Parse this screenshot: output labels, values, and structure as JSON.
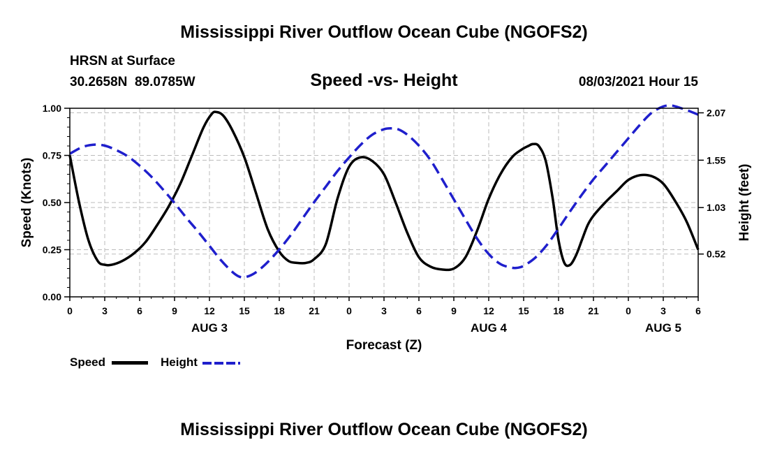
{
  "header": {
    "title": "Mississippi River Outflow Ocean Cube (NGOFS2)",
    "station": "HRSN at Surface",
    "coords": "30.2658N  89.0785W",
    "subtitle": "Speed -vs- Height",
    "datetime": "08/03/2021 Hour 15"
  },
  "footer": {
    "title": "Mississippi River Outflow Ocean Cube (NGOFS2)"
  },
  "legend": {
    "speed_label": "Speed",
    "height_label": "Height"
  },
  "colors": {
    "speed": "#000000",
    "height": "#1f1fcc",
    "grid": "#bbbbbb"
  },
  "chart_data": {
    "type": "line",
    "xlabel": "Forecast (Z)",
    "ylabel_left": "Speed (Knots)",
    "ylabel_right": "Height (feet)",
    "x_unit": "hours since 08/03 00Z",
    "xlim": [
      0,
      54
    ],
    "x_ticks": [
      0,
      3,
      6,
      9,
      12,
      15,
      18,
      21,
      24,
      27,
      30,
      33,
      36,
      39,
      42,
      45,
      48,
      51,
      54
    ],
    "x_tick_labels": [
      "0",
      "3",
      "6",
      "9",
      "12",
      "15",
      "18",
      "21",
      "0",
      "3",
      "6",
      "9",
      "12",
      "15",
      "18",
      "21",
      "0",
      "3",
      "6"
    ],
    "day_labels": [
      {
        "x": 12,
        "label": "AUG 3"
      },
      {
        "x": 36,
        "label": "AUG 4"
      },
      {
        "x": 51,
        "label": "AUG 5"
      }
    ],
    "ylim_left": [
      0,
      1.0
    ],
    "y_ticks_left": [
      0,
      0.25,
      0.5,
      0.75,
      1.0
    ],
    "y_tick_labels_left": [
      "0.00",
      "0.25",
      "0.50",
      "0.75",
      "1.00"
    ],
    "ylim_right": [
      0.05,
      2.12
    ],
    "y_ticks_right": [
      0.52,
      1.03,
      1.55,
      2.07
    ],
    "y_tick_labels_right": [
      "0.52",
      "1.03",
      "1.55",
      "2.07"
    ],
    "series": [
      {
        "name": "Speed",
        "axis": "left",
        "style": "solid",
        "x": [
          0,
          0.8,
          1.6,
          2.4,
          3.0,
          3.6,
          4.5,
          5.5,
          6.5,
          7.5,
          8.5,
          9.5,
          10.5,
          11.5,
          12.2,
          12.6,
          13.2,
          14.0,
          15.0,
          16.0,
          17.0,
          18.0,
          18.8,
          19.5,
          20.3,
          21.0,
          22.0,
          23.0,
          24.0,
          25.0,
          26.0,
          27.0,
          28.0,
          29.0,
          30.0,
          31.0,
          32.0,
          33.0,
          34.0,
          35.0,
          36.0,
          37.0,
          38.0,
          38.8,
          39.4,
          39.8,
          40.3,
          40.9,
          41.5,
          42.0,
          42.5,
          43.0,
          43.5,
          44.0,
          44.5,
          45.0,
          46.0,
          47.0,
          48.0,
          49.0,
          50.0,
          51.0,
          52.0,
          53.0,
          54.0
        ],
        "values": [
          0.75,
          0.5,
          0.3,
          0.19,
          0.17,
          0.17,
          0.19,
          0.23,
          0.29,
          0.38,
          0.48,
          0.6,
          0.75,
          0.9,
          0.97,
          0.98,
          0.96,
          0.88,
          0.74,
          0.55,
          0.36,
          0.24,
          0.19,
          0.18,
          0.18,
          0.2,
          0.28,
          0.52,
          0.69,
          0.74,
          0.72,
          0.65,
          0.5,
          0.34,
          0.21,
          0.16,
          0.145,
          0.15,
          0.21,
          0.35,
          0.52,
          0.65,
          0.74,
          0.78,
          0.8,
          0.81,
          0.8,
          0.72,
          0.52,
          0.3,
          0.18,
          0.17,
          0.22,
          0.3,
          0.38,
          0.43,
          0.5,
          0.56,
          0.62,
          0.645,
          0.64,
          0.6,
          0.51,
          0.4,
          0.25
        ]
      },
      {
        "name": "Height",
        "axis": "right",
        "style": "dashed",
        "x": [
          0,
          1.0,
          2.0,
          3.0,
          4.0,
          5.0,
          6.0,
          7.0,
          8.0,
          9.0,
          10.0,
          11.0,
          12.0,
          13.0,
          14.0,
          14.6,
          15.2,
          16.0,
          17.0,
          18.0,
          19.0,
          20.0,
          21.0,
          22.0,
          23.0,
          24.0,
          25.0,
          26.0,
          27.0,
          27.6,
          28.2,
          29.0,
          30.0,
          31.0,
          32.0,
          33.0,
          34.0,
          35.0,
          36.0,
          37.0,
          38.0,
          38.5,
          39.0,
          40.0,
          41.0,
          42.0,
          43.0,
          44.0,
          45.0,
          46.0,
          47.0,
          48.0,
          49.0,
          50.0,
          51.0,
          51.7,
          52.3,
          53.0,
          54.0
        ],
        "values": [
          1.62,
          1.69,
          1.72,
          1.71,
          1.66,
          1.59,
          1.49,
          1.37,
          1.23,
          1.08,
          0.92,
          0.77,
          0.61,
          0.45,
          0.32,
          0.27,
          0.27,
          0.32,
          0.43,
          0.57,
          0.73,
          0.91,
          1.09,
          1.26,
          1.43,
          1.58,
          1.72,
          1.83,
          1.89,
          1.9,
          1.89,
          1.83,
          1.71,
          1.55,
          1.34,
          1.12,
          0.9,
          0.69,
          0.52,
          0.41,
          0.37,
          0.37,
          0.39,
          0.48,
          0.62,
          0.8,
          0.99,
          1.17,
          1.34,
          1.49,
          1.64,
          1.79,
          1.94,
          2.07,
          2.14,
          2.15,
          2.13,
          2.1,
          2.05
        ]
      }
    ]
  }
}
